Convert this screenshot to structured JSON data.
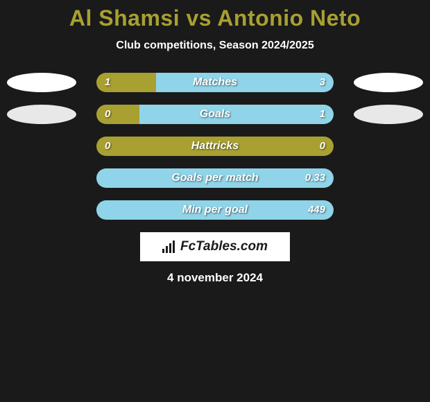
{
  "title": "Al Shamsi vs Antonio Neto",
  "subtitle": "Club competitions, Season 2024/2025",
  "date_text": "4 november 2024",
  "logo_text": "FcTables.com",
  "colors": {
    "background": "#1a1a1a",
    "title_color": "#a8a030",
    "text_color": "#ffffff",
    "bar_olive": "#a8a030",
    "bar_cyan": "#8fd4e8",
    "ellipse_white": "#ffffff",
    "ellipse_gray": "#e8e8e8"
  },
  "rows": [
    {
      "label": "Matches",
      "left_value": "1",
      "right_value": "3",
      "left_pct": 25,
      "right_pct": 75,
      "left_color": "#a8a030",
      "right_color": "#8fd4e8",
      "show_ellipses": true,
      "ellipse_left_color": "#ffffff",
      "ellipse_right_color": "#ffffff"
    },
    {
      "label": "Goals",
      "left_value": "0",
      "right_value": "1",
      "left_pct": 18,
      "right_pct": 82,
      "left_color": "#a8a030",
      "right_color": "#8fd4e8",
      "show_ellipses": true,
      "ellipse_left_color": "#e8e8e8",
      "ellipse_right_color": "#e8e8e8"
    },
    {
      "label": "Hattricks",
      "left_value": "0",
      "right_value": "0",
      "left_pct": 100,
      "right_pct": 0,
      "left_color": "#a8a030",
      "right_color": "#8fd4e8",
      "show_ellipses": false
    },
    {
      "label": "Goals per match",
      "left_value": "",
      "right_value": "0.33",
      "left_pct": 0,
      "right_pct": 100,
      "left_color": "#a8a030",
      "right_color": "#8fd4e8",
      "show_ellipses": false
    },
    {
      "label": "Min per goal",
      "left_value": "",
      "right_value": "449",
      "left_pct": 0,
      "right_pct": 100,
      "left_color": "#a8a030",
      "right_color": "#8fd4e8",
      "show_ellipses": false
    }
  ]
}
